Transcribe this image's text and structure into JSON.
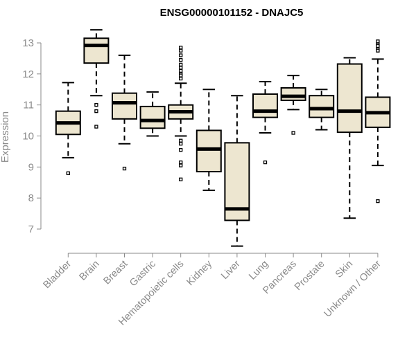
{
  "chart_data": {
    "type": "boxplot",
    "title": "ENSG00000101152 - DNAJC5",
    "xlabel": "",
    "ylabel": "Expression",
    "ylim": [
      6.3,
      13.6
    ],
    "yticks": [
      7,
      8,
      9,
      10,
      11,
      12,
      13
    ],
    "grid": false,
    "box_fill": "#ede6d0",
    "box_stroke": "#000000",
    "median_color": "#000000",
    "categories": [
      "Bladder",
      "Brain",
      "Breast",
      "Gastric",
      "Hematopoietic cells",
      "Kidney",
      "Liver",
      "Lung",
      "Pancreas",
      "Prostate",
      "Skin",
      "Unknown / Other"
    ],
    "boxes": [
      {
        "whisker_low": 9.3,
        "q1": 10.05,
        "median": 10.42,
        "q3": 10.8,
        "whisker_high": 11.72,
        "outliers": [
          8.8
        ]
      },
      {
        "whisker_low": 11.3,
        "q1": 12.35,
        "median": 12.92,
        "q3": 13.15,
        "whisker_high": 13.42,
        "outliers": [
          11.0,
          10.8,
          10.3
        ]
      },
      {
        "whisker_low": 9.75,
        "q1": 10.55,
        "median": 11.07,
        "q3": 11.38,
        "whisker_high": 12.6,
        "outliers": [
          8.95
        ]
      },
      {
        "whisker_low": 10.0,
        "q1": 10.25,
        "median": 10.5,
        "q3": 10.95,
        "whisker_high": 11.42,
        "outliers": []
      },
      {
        "whisker_low": 10.0,
        "q1": 10.55,
        "median": 10.78,
        "q3": 11.0,
        "whisker_high": 11.7,
        "outliers": [
          12.85,
          12.75,
          12.6,
          12.45,
          12.3,
          12.2,
          12.1,
          12.0,
          11.95,
          11.85,
          9.85,
          9.75,
          9.55,
          9.15,
          9.05,
          8.6
        ]
      },
      {
        "whisker_low": 8.25,
        "q1": 8.85,
        "median": 9.58,
        "q3": 10.18,
        "whisker_high": 11.5,
        "outliers": []
      },
      {
        "whisker_low": 6.45,
        "q1": 7.28,
        "median": 7.65,
        "q3": 9.78,
        "whisker_high": 11.3,
        "outliers": []
      },
      {
        "whisker_low": 10.1,
        "q1": 10.6,
        "median": 10.8,
        "q3": 11.35,
        "whisker_high": 11.75,
        "outliers": [
          9.15
        ]
      },
      {
        "whisker_low": 10.85,
        "q1": 11.15,
        "median": 11.28,
        "q3": 11.55,
        "whisker_high": 11.95,
        "outliers": [
          10.1
        ]
      },
      {
        "whisker_low": 10.2,
        "q1": 10.6,
        "median": 10.88,
        "q3": 11.3,
        "whisker_high": 11.5,
        "outliers": []
      },
      {
        "whisker_low": 7.35,
        "q1": 10.12,
        "median": 10.8,
        "q3": 12.32,
        "whisker_high": 12.52,
        "outliers": []
      },
      {
        "whisker_low": 9.05,
        "q1": 10.28,
        "median": 10.75,
        "q3": 11.25,
        "whisker_high": 12.48,
        "outliers": [
          13.05,
          12.95,
          12.9,
          12.8,
          12.75,
          7.9
        ]
      }
    ]
  }
}
